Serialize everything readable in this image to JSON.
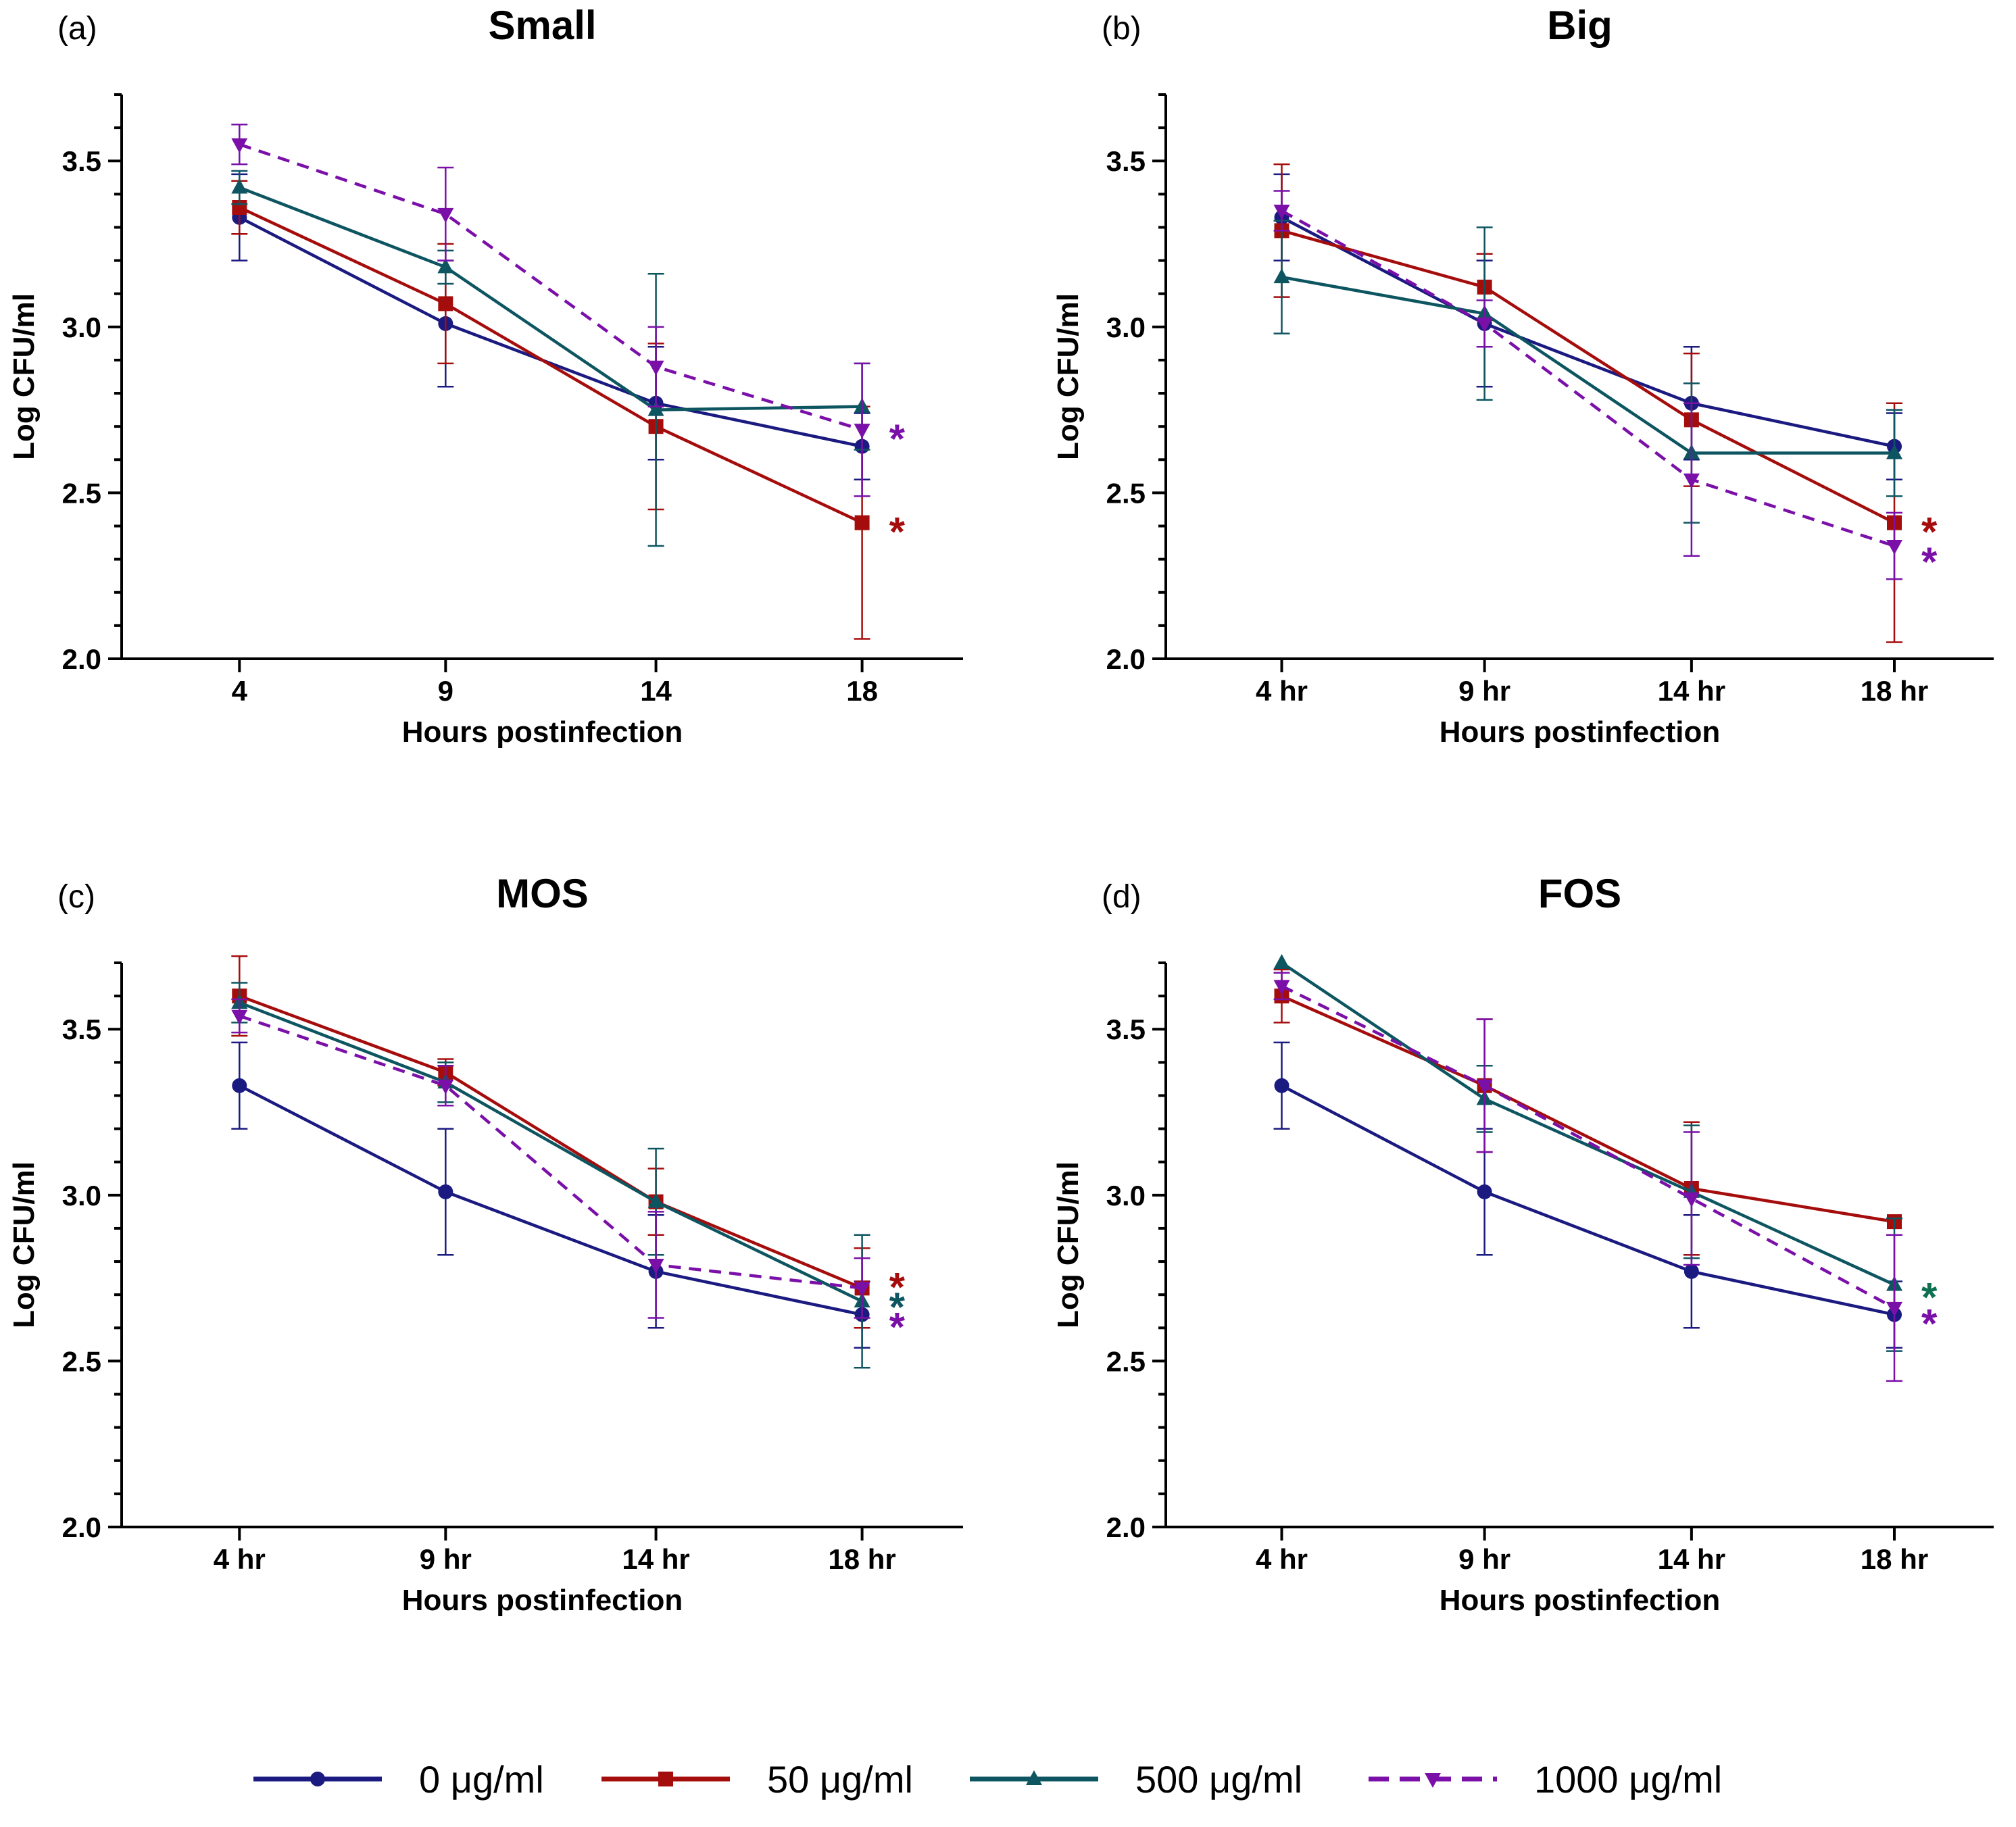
{
  "series_styles": [
    {
      "name": "0 μg/ml",
      "color": "#1a1a80",
      "marker": "circle",
      "dashed": false
    },
    {
      "name": "50 μg/ml",
      "color": "#a50d0d",
      "marker": "square",
      "dashed": false
    },
    {
      "name": "500 μg/ml",
      "color": "#0d5560",
      "marker": "triangle-up",
      "dashed": false
    },
    {
      "name": "1000 μg/ml",
      "color": "#7a10a8",
      "marker": "triangle-down",
      "dashed": true
    }
  ],
  "legend": {
    "items": [
      "0 μg/ml",
      "50 μg/ml",
      "500 μg/ml",
      "1000 μg/ml"
    ],
    "placement": "bottom"
  },
  "star_colors": {
    "red": "#a50d0d",
    "teal": "#0d5560",
    "green": "#0d7050",
    "purple": "#7a10a8"
  },
  "chart_data": [
    {
      "type": "line",
      "panel_label": "(a)",
      "title": "Small",
      "xlabel": "Hours postinfection",
      "ylabel": "Log CFU/ml",
      "categories": [
        "4",
        "9",
        "14",
        "18"
      ],
      "ylim": [
        2.0,
        3.7
      ],
      "yticks": [
        2.0,
        2.5,
        3.0,
        3.5
      ],
      "ytick_labels": [
        "2.0",
        "2.5",
        "3.0",
        "3.5"
      ],
      "series": [
        {
          "name": "0 μg/ml",
          "values": [
            3.33,
            3.01,
            2.77,
            2.64
          ],
          "errors": [
            0.13,
            0.19,
            0.17,
            0.1
          ]
        },
        {
          "name": "50 μg/ml",
          "values": [
            3.36,
            3.07,
            2.7,
            2.41
          ],
          "errors": [
            0.08,
            0.18,
            0.25,
            0.35
          ]
        },
        {
          "name": "500 μg/ml",
          "values": [
            3.42,
            3.18,
            2.75,
            2.76
          ],
          "errors": [
            0.05,
            0.05,
            0.41,
            0.13
          ]
        },
        {
          "name": "1000 μg/ml",
          "values": [
            3.55,
            3.34,
            2.88,
            2.69
          ],
          "errors": [
            0.06,
            0.14,
            0.12,
            0.2
          ]
        }
      ],
      "annotations": [
        {
          "text": "*",
          "category": "18",
          "y": 2.69,
          "color_key": "purple"
        },
        {
          "text": "*",
          "category": "18",
          "y": 2.41,
          "color_key": "red"
        }
      ]
    },
    {
      "type": "line",
      "panel_label": "(b)",
      "title": "Big",
      "xlabel": "Hours postinfection",
      "ylabel": "Log CFU/ml",
      "categories": [
        "4 hr",
        "9 hr",
        "14 hr",
        "18 hr"
      ],
      "ylim": [
        2.0,
        3.7
      ],
      "yticks": [
        2.0,
        2.5,
        3.0,
        3.5
      ],
      "ytick_labels": [
        "2.0",
        "2.5",
        "3.0",
        "3.5"
      ],
      "series": [
        {
          "name": "0 μg/ml",
          "values": [
            3.33,
            3.01,
            2.77,
            2.64
          ],
          "errors": [
            0.13,
            0.19,
            0.17,
            0.1
          ]
        },
        {
          "name": "50 μg/ml",
          "values": [
            3.29,
            3.12,
            2.72,
            2.41
          ],
          "errors": [
            0.2,
            0.1,
            0.2,
            0.36
          ]
        },
        {
          "name": "500 μg/ml",
          "values": [
            3.15,
            3.04,
            2.62,
            2.62
          ],
          "errors": [
            0.17,
            0.26,
            0.21,
            0.13
          ]
        },
        {
          "name": "1000 μg/ml",
          "values": [
            3.35,
            3.01,
            2.54,
            2.34
          ],
          "errors": [
            0.06,
            0.07,
            0.23,
            0.1
          ]
        }
      ],
      "annotations": [
        {
          "text": "*",
          "category": "18 hr",
          "y": 2.41,
          "color_key": "red"
        },
        {
          "text": "*",
          "category": "18 hr",
          "y": 2.32,
          "color_key": "purple"
        }
      ]
    },
    {
      "type": "line",
      "panel_label": "(c)",
      "title": "MOS",
      "xlabel": "Hours postinfection",
      "ylabel": "Log CFU/ml",
      "categories": [
        "4 hr",
        "9 hr",
        "14 hr",
        "18 hr"
      ],
      "ylim": [
        2.0,
        3.7
      ],
      "yticks": [
        2.0,
        2.5,
        3.0,
        3.5
      ],
      "ytick_labels": [
        "2.0",
        "2.5",
        "3.0",
        "3.5"
      ],
      "series": [
        {
          "name": "0 μg/ml",
          "values": [
            3.33,
            3.01,
            2.77,
            2.64
          ],
          "errors": [
            0.13,
            0.19,
            0.17,
            0.1
          ]
        },
        {
          "name": "50 μg/ml",
          "values": [
            3.6,
            3.37,
            2.98,
            2.72
          ],
          "errors": [
            0.12,
            0.04,
            0.1,
            0.12
          ]
        },
        {
          "name": "500 μg/ml",
          "values": [
            3.58,
            3.34,
            2.98,
            2.68
          ],
          "errors": [
            0.06,
            0.06,
            0.16,
            0.2
          ]
        },
        {
          "name": "1000 μg/ml",
          "values": [
            3.54,
            3.33,
            2.79,
            2.72
          ],
          "errors": [
            0.05,
            0.06,
            0.16,
            0.09
          ]
        }
      ],
      "annotations": [
        {
          "text": "*",
          "category": "18 hr",
          "y": 2.75,
          "color_key": "red"
        },
        {
          "text": "*",
          "category": "18 hr",
          "y": 2.69,
          "color_key": "teal"
        },
        {
          "text": "*",
          "category": "18 hr",
          "y": 2.63,
          "color_key": "purple"
        }
      ]
    },
    {
      "type": "line",
      "panel_label": "(d)",
      "title": "FOS",
      "xlabel": "Hours postinfection",
      "ylabel": "Log CFU/ml",
      "categories": [
        "4 hr",
        "9 hr",
        "14 hr",
        "18 hr"
      ],
      "ylim": [
        2.0,
        3.7
      ],
      "yticks": [
        2.0,
        2.5,
        3.0,
        3.5
      ],
      "ytick_labels": [
        "2.0",
        "2.5",
        "3.0",
        "3.5"
      ],
      "series": [
        {
          "name": "0 μg/ml",
          "values": [
            3.33,
            3.01,
            2.77,
            2.64
          ],
          "errors": [
            0.13,
            0.19,
            0.17,
            0.1
          ]
        },
        {
          "name": "50 μg/ml",
          "values": [
            3.6,
            3.33,
            3.02,
            2.92
          ],
          "errors": [
            0.08,
            0.2,
            0.2,
            0.0
          ]
        },
        {
          "name": "500 μg/ml",
          "values": [
            3.7,
            3.29,
            3.01,
            2.73
          ],
          "errors": [
            0.0,
            0.1,
            0.2,
            0.2
          ]
        },
        {
          "name": "1000 μg/ml",
          "values": [
            3.63,
            3.33,
            2.99,
            2.66
          ],
          "errors": [
            0.04,
            0.2,
            0.2,
            0.22
          ]
        }
      ],
      "annotations": [
        {
          "text": "*",
          "category": "18 hr",
          "y": 2.72,
          "color_key": "green"
        },
        {
          "text": "*",
          "category": "18 hr",
          "y": 2.64,
          "color_key": "purple"
        }
      ]
    }
  ]
}
